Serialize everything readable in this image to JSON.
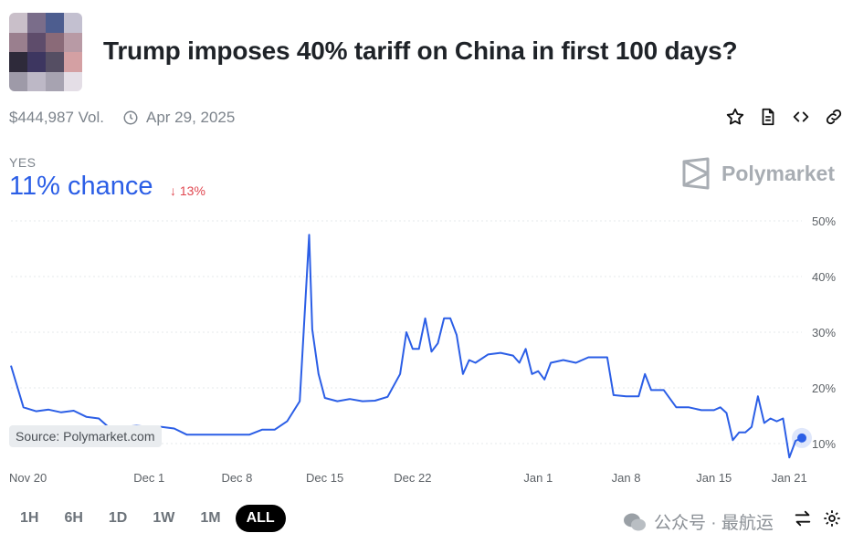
{
  "market": {
    "title": "Trump imposes 40% tariff on China in first 100 days?",
    "volume": "$444,987 Vol.",
    "date": "Apr 29, 2025"
  },
  "outcome": {
    "label": "YES",
    "chance": "11% chance",
    "delta": "13%",
    "delta_direction": "down"
  },
  "brand": {
    "name": "Polymarket"
  },
  "source_label": "Source: Polymarket.com",
  "time_ranges": [
    "1H",
    "6H",
    "1D",
    "1W",
    "1M",
    "ALL"
  ],
  "active_range": "ALL",
  "watermark": "公众号 · 最航运",
  "colors": {
    "accent": "#2b5ee6",
    "negative": "#e0464f",
    "active_range_bg": "#000000"
  },
  "chart_data": {
    "type": "line",
    "x_ticks": [
      "Nov 20",
      "Dec 1",
      "Dec 8",
      "Dec 15",
      "Dec 22",
      "Jan 1",
      "Jan 8",
      "Jan 15",
      "Jan 21"
    ],
    "y_ticks": [
      "10%",
      "20%",
      "30%",
      "40%",
      "50%"
    ],
    "ylim": [
      10,
      50
    ],
    "grid": true,
    "series": [
      {
        "color": "#2b5ee6",
        "points": [
          [
            "2024-11-20",
            24
          ],
          [
            "2024-11-21",
            16.5
          ],
          [
            "2024-11-22",
            15.8
          ],
          [
            "2024-11-23",
            16.1
          ],
          [
            "2024-11-24",
            15.6
          ],
          [
            "2024-11-25",
            15.9
          ],
          [
            "2024-11-26",
            14.8
          ],
          [
            "2024-11-27",
            14.5
          ],
          [
            "2024-11-28",
            12.5
          ],
          [
            "2024-11-29",
            13
          ],
          [
            "2024-11-30",
            13.2
          ],
          [
            "2024-12-01",
            13
          ],
          [
            "2024-12-02",
            13
          ],
          [
            "2024-12-03",
            12.7
          ],
          [
            "2024-12-04",
            11.6
          ],
          [
            "2024-12-05",
            11.6
          ],
          [
            "2024-12-06",
            11.6
          ],
          [
            "2024-12-07",
            11.6
          ],
          [
            "2024-12-08",
            11.6
          ],
          [
            "2024-12-09",
            11.6
          ],
          [
            "2024-12-10",
            12.5
          ],
          [
            "2024-12-11",
            12.5
          ],
          [
            "2024-12-12",
            14
          ],
          [
            "2024-12-13",
            17.6
          ],
          [
            "2024-12-13T18",
            47.5
          ],
          [
            "2024-12-14",
            30.5
          ],
          [
            "2024-12-14T12",
            22.5
          ],
          [
            "2024-12-15",
            18.2
          ],
          [
            "2024-12-16",
            17.6
          ],
          [
            "2024-12-17",
            18
          ],
          [
            "2024-12-18",
            17.6
          ],
          [
            "2024-12-19",
            17.7
          ],
          [
            "2024-12-20",
            18.4
          ],
          [
            "2024-12-21",
            22.5
          ],
          [
            "2024-12-21T12",
            30
          ],
          [
            "2024-12-22",
            27
          ],
          [
            "2024-12-22T12",
            27
          ],
          [
            "2024-12-23",
            32.5
          ],
          [
            "2024-12-23T12",
            26.5
          ],
          [
            "2024-12-24",
            28
          ],
          [
            "2024-12-24T12",
            32.5
          ],
          [
            "2024-12-25",
            32.5
          ],
          [
            "2024-12-25T12",
            29.5
          ],
          [
            "2024-12-26",
            22.5
          ],
          [
            "2024-12-26T12",
            25
          ],
          [
            "2024-12-27",
            24.5
          ],
          [
            "2024-12-28",
            26
          ],
          [
            "2024-12-29",
            26.3
          ],
          [
            "2024-12-30",
            25.8
          ],
          [
            "2024-12-30T12",
            24.5
          ],
          [
            "2024-12-31",
            27
          ],
          [
            "2024-12-31T12",
            22.5
          ],
          [
            "2025-01-01",
            23
          ],
          [
            "2025-01-01T12",
            21.5
          ],
          [
            "2025-01-02",
            24.5
          ],
          [
            "2025-01-03",
            25
          ],
          [
            "2025-01-04",
            24.5
          ],
          [
            "2025-01-05",
            25.5
          ],
          [
            "2025-01-06",
            25.5
          ],
          [
            "2025-01-06T12",
            25.5
          ],
          [
            "2025-01-07",
            18.7
          ],
          [
            "2025-01-08",
            18.5
          ],
          [
            "2025-01-09",
            18.5
          ],
          [
            "2025-01-09T12",
            22.5
          ],
          [
            "2025-01-10",
            19.6
          ],
          [
            "2025-01-11",
            19.6
          ],
          [
            "2025-01-12",
            16.5
          ],
          [
            "2025-01-13",
            16.5
          ],
          [
            "2025-01-14",
            16
          ],
          [
            "2025-01-15",
            16
          ],
          [
            "2025-01-15T12",
            16.5
          ],
          [
            "2025-01-16",
            15.5
          ],
          [
            "2025-01-16T12",
            10.6
          ],
          [
            "2025-01-17",
            12
          ],
          [
            "2025-01-17T12",
            12
          ],
          [
            "2025-01-18",
            13
          ],
          [
            "2025-01-18T12",
            18.5
          ],
          [
            "2025-01-19",
            13.7
          ],
          [
            "2025-01-19T12",
            14.5
          ],
          [
            "2025-01-20",
            14
          ],
          [
            "2025-01-20T12",
            14.5
          ],
          [
            "2025-01-21",
            7.5
          ],
          [
            "2025-01-21T12",
            10.5
          ],
          [
            "2025-01-22",
            11
          ]
        ]
      }
    ]
  }
}
